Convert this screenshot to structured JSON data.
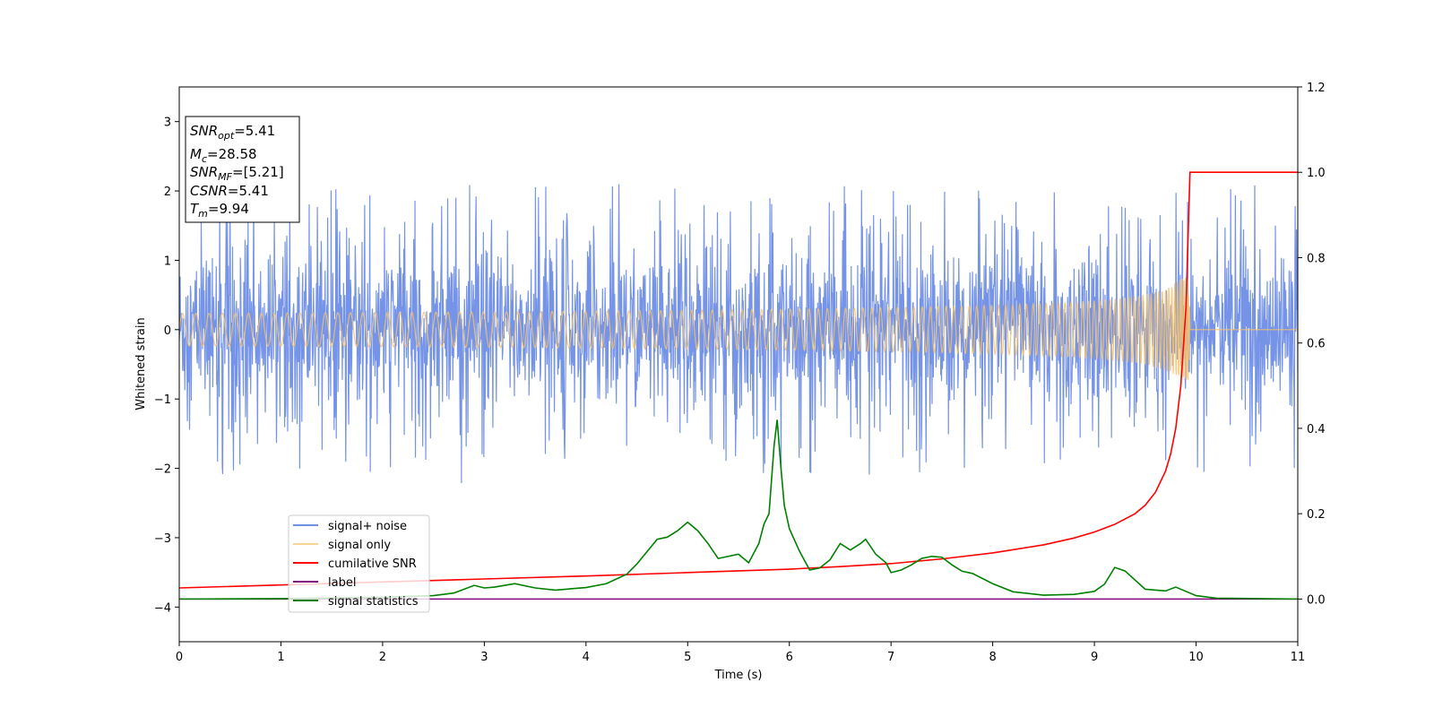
{
  "chart_data": {
    "type": "line",
    "title": "",
    "xlabel": "Time (s)",
    "ylabel": "Whitened strain",
    "xlim": [
      0,
      11
    ],
    "ylim": [
      -4.5,
      3.5
    ],
    "ylim_right": [
      -0.1,
      1.2
    ],
    "x_ticks": [
      "0",
      "1",
      "2",
      "3",
      "4",
      "5",
      "6",
      "7",
      "8",
      "9",
      "10",
      "11"
    ],
    "y_ticks": [
      "3",
      "2",
      "1",
      "0",
      "−1",
      "−2",
      "−3",
      "−4"
    ],
    "y_ticks_right": [
      "1.2",
      "1.0",
      "0.8",
      "0.6",
      "0.4",
      "0.2",
      "0.0"
    ],
    "grid": false,
    "legend_position": "lower-left",
    "info_box": {
      "lines": [
        {
          "base": "SNR",
          "sub": "opt",
          "value": "=5.41"
        },
        {
          "base": "M",
          "sub": "c",
          "value": "=28.58"
        },
        {
          "base": "SNR",
          "sub": "MF",
          "value": "=[5.21]"
        },
        {
          "base": "CSNR",
          "sub": "",
          "value": "=5.41"
        },
        {
          "base": "T",
          "sub": "m",
          "value": "=9.94"
        }
      ]
    },
    "series": [
      {
        "name": "signal+ noise",
        "axis": "left",
        "color": "#6f8ee6",
        "style": "noise",
        "amplitude": 1.05,
        "x_range": [
          0,
          11
        ]
      },
      {
        "name": "signal only",
        "axis": "left",
        "color": "#f5c26b",
        "style": "chirp",
        "merger_time": 9.94,
        "peak_amplitude": 0.75
      },
      {
        "name": "cumilative SNR",
        "axis": "right",
        "color": "#ff0000",
        "x": [
          0,
          1,
          2,
          3,
          4,
          5,
          5.5,
          6,
          6.5,
          7,
          7.5,
          8,
          8.5,
          8.8,
          9,
          9.2,
          9.4,
          9.5,
          9.6,
          9.7,
          9.75,
          9.8,
          9.85,
          9.9,
          9.94,
          10.0,
          11
        ],
        "y": [
          0.026,
          0.033,
          0.04,
          0.047,
          0.054,
          0.062,
          0.066,
          0.07,
          0.076,
          0.083,
          0.094,
          0.108,
          0.127,
          0.143,
          0.157,
          0.175,
          0.2,
          0.22,
          0.25,
          0.3,
          0.34,
          0.4,
          0.5,
          0.68,
          1.0,
          1.0,
          1.0
        ]
      },
      {
        "name": "label",
        "axis": "right",
        "color": "#800080",
        "x": [
          0,
          11
        ],
        "y": [
          0.0,
          0.0
        ]
      },
      {
        "name": "signal statistics",
        "axis": "right",
        "color": "#008000",
        "x": [
          0,
          1,
          2,
          2.5,
          2.7,
          2.9,
          3.0,
          3.1,
          3.3,
          3.5,
          3.7,
          4.0,
          4.2,
          4.4,
          4.5,
          4.7,
          4.8,
          4.9,
          5.0,
          5.1,
          5.2,
          5.3,
          5.4,
          5.5,
          5.6,
          5.7,
          5.75,
          5.8,
          5.85,
          5.88,
          5.92,
          5.95,
          6.0,
          6.1,
          6.2,
          6.3,
          6.4,
          6.5,
          6.6,
          6.7,
          6.75,
          6.85,
          6.95,
          7.0,
          7.1,
          7.2,
          7.3,
          7.4,
          7.5,
          7.6,
          7.7,
          7.8,
          8.0,
          8.2,
          8.5,
          8.8,
          9.0,
          9.1,
          9.2,
          9.3,
          9.5,
          9.7,
          9.8,
          10.0,
          10.2,
          11
        ],
        "y": [
          0.0,
          0.001,
          0.004,
          0.008,
          0.014,
          0.032,
          0.026,
          0.028,
          0.036,
          0.026,
          0.021,
          0.027,
          0.036,
          0.058,
          0.082,
          0.14,
          0.145,
          0.16,
          0.18,
          0.16,
          0.13,
          0.095,
          0.1,
          0.105,
          0.085,
          0.13,
          0.175,
          0.2,
          0.36,
          0.42,
          0.3,
          0.22,
          0.165,
          0.112,
          0.068,
          0.073,
          0.092,
          0.13,
          0.115,
          0.13,
          0.14,
          0.105,
          0.085,
          0.062,
          0.068,
          0.08,
          0.095,
          0.1,
          0.098,
          0.08,
          0.065,
          0.06,
          0.036,
          0.017,
          0.009,
          0.011,
          0.018,
          0.035,
          0.074,
          0.066,
          0.023,
          0.019,
          0.028,
          0.008,
          0.002,
          0.0
        ]
      }
    ]
  }
}
